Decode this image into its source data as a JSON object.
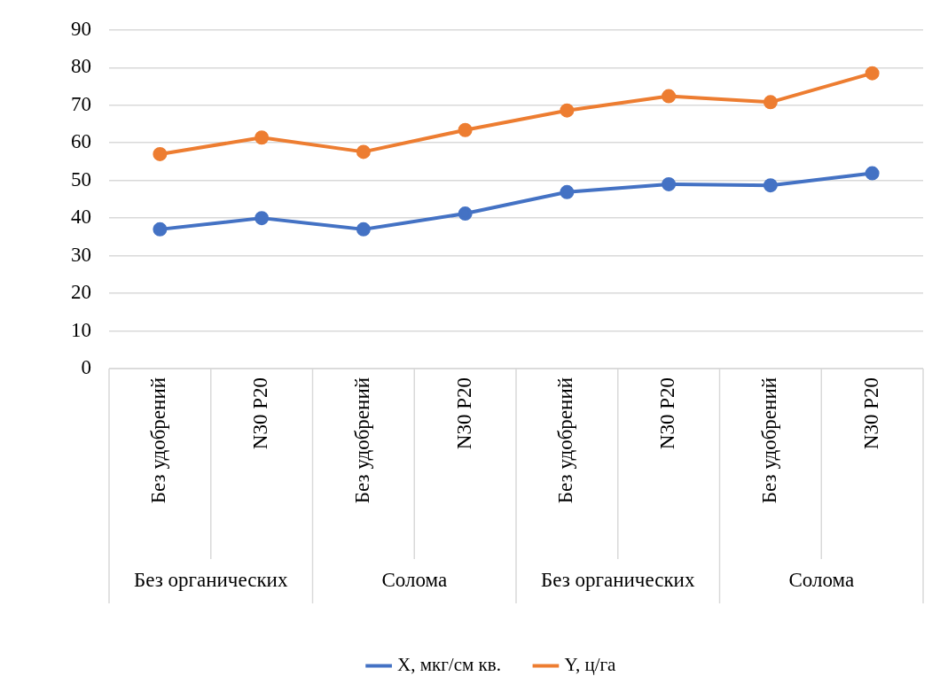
{
  "chart_data": {
    "type": "line",
    "categories": [
      "Без удобрений",
      "N30 P20",
      "Без удобрений",
      "N30 P20",
      "Без удобрений",
      "N30 P20",
      "Без удобрений",
      "N30 P20"
    ],
    "series": [
      {
        "name": "X, мкг/см кв.",
        "color": "#4472c4",
        "values": [
          37.0,
          40.0,
          37.0,
          41.2,
          46.9,
          49.0,
          48.7,
          51.9
        ]
      },
      {
        "name": "Y, ц/га",
        "color": "#ed7d31",
        "values": [
          57.0,
          61.4,
          57.6,
          63.4,
          68.6,
          72.4,
          70.8,
          78.5
        ]
      }
    ],
    "annotations": [
      "Без органических",
      "Солома",
      "Без органических",
      "Солома"
    ],
    "ylim": [
      0,
      90
    ],
    "yticks": [
      0,
      10,
      20,
      30,
      40,
      50,
      60,
      70,
      80,
      90
    ],
    "grid": "y",
    "legend": "bottom",
    "marker": "circle",
    "line_style": "solid"
  }
}
